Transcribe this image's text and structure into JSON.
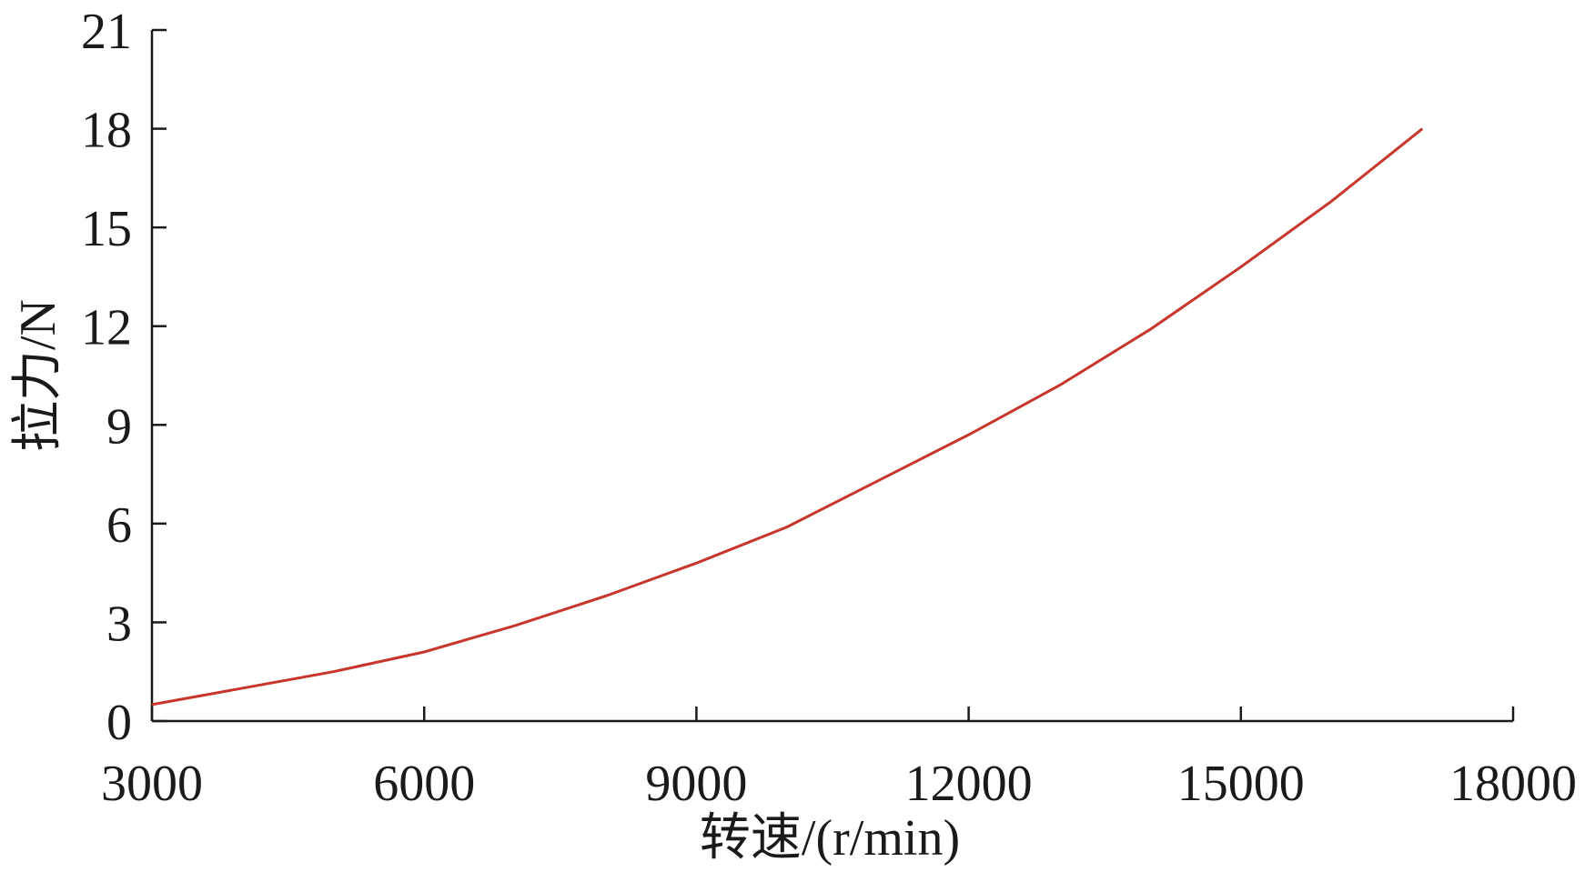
{
  "chart_data": {
    "type": "line",
    "x_label": "转速/(r/min)",
    "y_label": "拉力/N",
    "x": [
      3000,
      4000,
      5000,
      6000,
      7000,
      8000,
      9000,
      10000,
      11000,
      12000,
      13000,
      14000,
      15000,
      16000,
      17000
    ],
    "series": [
      {
        "color": "#c8352b",
        "values": [
          0.5,
          1.0,
          1.5,
          2.1,
          2.9,
          3.8,
          4.8,
          5.9,
          7.3,
          8.7,
          10.2,
          11.9,
          13.8,
          15.8,
          18.0
        ]
      }
    ],
    "xlim": [
      3000,
      18000
    ],
    "xticks": [
      3000,
      6000,
      9000,
      12000,
      15000,
      18000
    ],
    "ylim": [
      0,
      21
    ],
    "yticks": [
      0,
      3,
      6,
      9,
      12,
      15,
      18,
      21
    ]
  }
}
